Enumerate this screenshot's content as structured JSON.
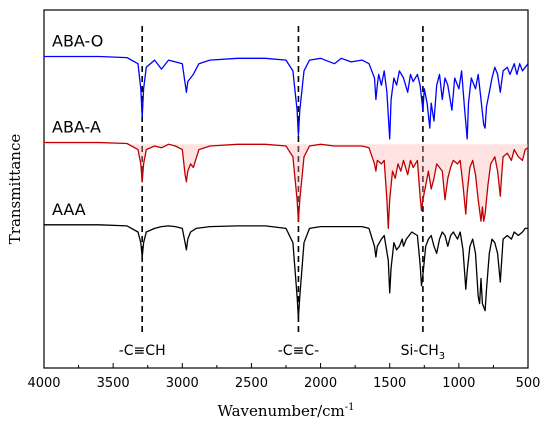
{
  "chart_data": {
    "type": "line",
    "xlabel": "Wavenumber/cm",
    "xlabel_sup": "-1",
    "ylabel": "Transmittance",
    "xlim": [
      4000,
      500
    ],
    "x_reversed": true,
    "xticks": [
      4000,
      3500,
      3000,
      2500,
      2000,
      1500,
      1000,
      500
    ],
    "y_ticks_shown": false,
    "grid": false,
    "series": [
      {
        "name": "ABA-O",
        "color": "#0000ff",
        "baseline": 0.87,
        "points": [
          [
            4000,
            0.0
          ],
          [
            3600,
            0.0
          ],
          [
            3400,
            -0.003
          ],
          [
            3320,
            -0.02
          ],
          [
            3300,
            -0.09
          ],
          [
            3290,
            -0.17
          ],
          [
            3280,
            -0.09
          ],
          [
            3260,
            -0.03
          ],
          [
            3200,
            -0.01
          ],
          [
            3150,
            -0.035
          ],
          [
            3100,
            -0.01
          ],
          [
            3050,
            -0.015
          ],
          [
            3000,
            -0.02
          ],
          [
            2970,
            -0.1
          ],
          [
            2960,
            -0.07
          ],
          [
            2920,
            -0.05
          ],
          [
            2880,
            -0.02
          ],
          [
            2800,
            -0.01
          ],
          [
            2600,
            -0.005
          ],
          [
            2400,
            -0.005
          ],
          [
            2250,
            -0.01
          ],
          [
            2200,
            -0.04
          ],
          [
            2170,
            -0.15
          ],
          [
            2160,
            -0.22
          ],
          [
            2150,
            -0.15
          ],
          [
            2120,
            -0.04
          ],
          [
            2080,
            -0.01
          ],
          [
            2000,
            -0.005
          ],
          [
            1900,
            -0.02
          ],
          [
            1850,
            -0.005
          ],
          [
            1780,
            -0.015
          ],
          [
            1700,
            -0.01
          ],
          [
            1650,
            -0.02
          ],
          [
            1610,
            -0.06
          ],
          [
            1600,
            -0.12
          ],
          [
            1590,
            -0.08
          ],
          [
            1580,
            -0.05
          ],
          [
            1560,
            -0.08
          ],
          [
            1540,
            -0.04
          ],
          [
            1520,
            -0.1
          ],
          [
            1500,
            -0.23
          ],
          [
            1490,
            -0.12
          ],
          [
            1470,
            -0.06
          ],
          [
            1450,
            -0.08
          ],
          [
            1430,
            -0.04
          ],
          [
            1400,
            -0.06
          ],
          [
            1370,
            -0.1
          ],
          [
            1350,
            -0.05
          ],
          [
            1330,
            -0.07
          ],
          [
            1300,
            -0.05
          ],
          [
            1280,
            -0.08
          ],
          [
            1260,
            -0.15
          ],
          [
            1250,
            -0.09
          ],
          [
            1230,
            -0.13
          ],
          [
            1210,
            -0.2
          ],
          [
            1200,
            -0.13
          ],
          [
            1180,
            -0.18
          ],
          [
            1160,
            -0.08
          ],
          [
            1140,
            -0.05
          ],
          [
            1120,
            -0.12
          ],
          [
            1100,
            -0.06
          ],
          [
            1080,
            -0.08
          ],
          [
            1050,
            -0.15
          ],
          [
            1030,
            -0.06
          ],
          [
            1000,
            -0.09
          ],
          [
            980,
            -0.04
          ],
          [
            960,
            -0.14
          ],
          [
            940,
            -0.23
          ],
          [
            930,
            -0.13
          ],
          [
            910,
            -0.06
          ],
          [
            880,
            -0.09
          ],
          [
            860,
            -0.05
          ],
          [
            840,
            -0.12
          ],
          [
            820,
            -0.19
          ],
          [
            810,
            -0.2
          ],
          [
            800,
            -0.14
          ],
          [
            780,
            -0.1
          ],
          [
            760,
            -0.06
          ],
          [
            740,
            -0.03
          ],
          [
            720,
            -0.05
          ],
          [
            700,
            -0.1
          ],
          [
            690,
            -0.07
          ],
          [
            680,
            -0.04
          ],
          [
            650,
            -0.03
          ],
          [
            630,
            -0.05
          ],
          [
            600,
            -0.02
          ],
          [
            580,
            -0.05
          ],
          [
            560,
            -0.02
          ],
          [
            540,
            -0.04
          ],
          [
            520,
            -0.03
          ],
          [
            500,
            -0.02
          ]
        ]
      },
      {
        "name": "ABA-A",
        "color": "#c00000",
        "baseline": 0.63,
        "points": [
          [
            4000,
            0.0
          ],
          [
            3600,
            0.0
          ],
          [
            3400,
            -0.003
          ],
          [
            3320,
            -0.02
          ],
          [
            3300,
            -0.06
          ],
          [
            3290,
            -0.11
          ],
          [
            3280,
            -0.06
          ],
          [
            3260,
            -0.02
          ],
          [
            3200,
            -0.01
          ],
          [
            3150,
            -0.015
          ],
          [
            3100,
            -0.005
          ],
          [
            3050,
            -0.01
          ],
          [
            3000,
            -0.02
          ],
          [
            2980,
            -0.09
          ],
          [
            2970,
            -0.11
          ],
          [
            2960,
            -0.08
          ],
          [
            2940,
            -0.06
          ],
          [
            2920,
            -0.07
          ],
          [
            2880,
            -0.02
          ],
          [
            2800,
            -0.01
          ],
          [
            2600,
            -0.005
          ],
          [
            2400,
            -0.005
          ],
          [
            2250,
            -0.01
          ],
          [
            2200,
            -0.04
          ],
          [
            2170,
            -0.16
          ],
          [
            2160,
            -0.22
          ],
          [
            2150,
            -0.16
          ],
          [
            2120,
            -0.04
          ],
          [
            2080,
            -0.01
          ],
          [
            2000,
            -0.005
          ],
          [
            1900,
            -0.01
          ],
          [
            1800,
            -0.01
          ],
          [
            1700,
            -0.01
          ],
          [
            1650,
            -0.015
          ],
          [
            1610,
            -0.06
          ],
          [
            1600,
            -0.08
          ],
          [
            1590,
            -0.05
          ],
          [
            1560,
            -0.06
          ],
          [
            1540,
            -0.05
          ],
          [
            1520,
            -0.16
          ],
          [
            1510,
            -0.24
          ],
          [
            1500,
            -0.16
          ],
          [
            1480,
            -0.08
          ],
          [
            1460,
            -0.1
          ],
          [
            1440,
            -0.06
          ],
          [
            1420,
            -0.08
          ],
          [
            1400,
            -0.05
          ],
          [
            1370,
            -0.09
          ],
          [
            1350,
            -0.05
          ],
          [
            1330,
            -0.07
          ],
          [
            1300,
            -0.05
          ],
          [
            1280,
            -0.15
          ],
          [
            1270,
            -0.19
          ],
          [
            1260,
            -0.16
          ],
          [
            1240,
            -0.12
          ],
          [
            1220,
            -0.08
          ],
          [
            1200,
            -0.13
          ],
          [
            1180,
            -0.1
          ],
          [
            1160,
            -0.06
          ],
          [
            1120,
            -0.08
          ],
          [
            1100,
            -0.16
          ],
          [
            1080,
            -0.1
          ],
          [
            1060,
            -0.07
          ],
          [
            1040,
            -0.05
          ],
          [
            1010,
            -0.06
          ],
          [
            990,
            -0.05
          ],
          [
            970,
            -0.12
          ],
          [
            950,
            -0.2
          ],
          [
            940,
            -0.14
          ],
          [
            920,
            -0.07
          ],
          [
            900,
            -0.05
          ],
          [
            880,
            -0.09
          ],
          [
            860,
            -0.16
          ],
          [
            840,
            -0.22
          ],
          [
            830,
            -0.18
          ],
          [
            820,
            -0.22
          ],
          [
            810,
            -0.2
          ],
          [
            790,
            -0.12
          ],
          [
            770,
            -0.06
          ],
          [
            740,
            -0.04
          ],
          [
            720,
            -0.08
          ],
          [
            700,
            -0.15
          ],
          [
            690,
            -0.09
          ],
          [
            680,
            -0.04
          ],
          [
            650,
            -0.03
          ],
          [
            620,
            -0.05
          ],
          [
            600,
            -0.02
          ],
          [
            570,
            -0.04
          ],
          [
            540,
            -0.05
          ],
          [
            520,
            -0.02
          ],
          [
            500,
            -0.015
          ]
        ]
      },
      {
        "name": "AAA",
        "color": "#000000",
        "baseline": 0.4,
        "points": [
          [
            4000,
            0.0
          ],
          [
            3600,
            0.0
          ],
          [
            3400,
            -0.003
          ],
          [
            3320,
            -0.02
          ],
          [
            3300,
            -0.05
          ],
          [
            3290,
            -0.09
          ],
          [
            3280,
            -0.05
          ],
          [
            3260,
            -0.02
          ],
          [
            3200,
            -0.01
          ],
          [
            3150,
            -0.005
          ],
          [
            3100,
            -0.003
          ],
          [
            3050,
            -0.005
          ],
          [
            3000,
            -0.01
          ],
          [
            2980,
            -0.05
          ],
          [
            2970,
            -0.07
          ],
          [
            2960,
            -0.04
          ],
          [
            2940,
            -0.02
          ],
          [
            2900,
            -0.01
          ],
          [
            2800,
            -0.005
          ],
          [
            2600,
            -0.003
          ],
          [
            2400,
            -0.003
          ],
          [
            2250,
            -0.01
          ],
          [
            2200,
            -0.05
          ],
          [
            2170,
            -0.2
          ],
          [
            2160,
            -0.26
          ],
          [
            2150,
            -0.2
          ],
          [
            2120,
            -0.05
          ],
          [
            2080,
            -0.01
          ],
          [
            2000,
            -0.005
          ],
          [
            1900,
            -0.005
          ],
          [
            1800,
            -0.005
          ],
          [
            1700,
            -0.005
          ],
          [
            1650,
            -0.01
          ],
          [
            1610,
            -0.06
          ],
          [
            1600,
            -0.09
          ],
          [
            1590,
            -0.06
          ],
          [
            1560,
            -0.04
          ],
          [
            1540,
            -0.03
          ],
          [
            1510,
            -0.1
          ],
          [
            1500,
            -0.19
          ],
          [
            1490,
            -0.12
          ],
          [
            1470,
            -0.05
          ],
          [
            1450,
            -0.07
          ],
          [
            1430,
            -0.06
          ],
          [
            1410,
            -0.04
          ],
          [
            1400,
            -0.06
          ],
          [
            1380,
            -0.04
          ],
          [
            1360,
            -0.03
          ],
          [
            1340,
            -0.02
          ],
          [
            1300,
            -0.03
          ],
          [
            1280,
            -0.11
          ],
          [
            1270,
            -0.17
          ],
          [
            1260,
            -0.14
          ],
          [
            1240,
            -0.06
          ],
          [
            1220,
            -0.04
          ],
          [
            1200,
            -0.03
          ],
          [
            1180,
            -0.06
          ],
          [
            1160,
            -0.08
          ],
          [
            1140,
            -0.04
          ],
          [
            1120,
            -0.02
          ],
          [
            1100,
            -0.03
          ],
          [
            1080,
            -0.06
          ],
          [
            1060,
            -0.03
          ],
          [
            1040,
            -0.02
          ],
          [
            1010,
            -0.04
          ],
          [
            990,
            -0.02
          ],
          [
            970,
            -0.07
          ],
          [
            950,
            -0.18
          ],
          [
            940,
            -0.13
          ],
          [
            920,
            -0.06
          ],
          [
            900,
            -0.04
          ],
          [
            880,
            -0.08
          ],
          [
            860,
            -0.2
          ],
          [
            850,
            -0.22
          ],
          [
            840,
            -0.15
          ],
          [
            830,
            -0.22
          ],
          [
            810,
            -0.24
          ],
          [
            800,
            -0.18
          ],
          [
            780,
            -0.08
          ],
          [
            760,
            -0.04
          ],
          [
            740,
            -0.05
          ],
          [
            720,
            -0.08
          ],
          [
            700,
            -0.16
          ],
          [
            690,
            -0.1
          ],
          [
            680,
            -0.04
          ],
          [
            650,
            -0.03
          ],
          [
            620,
            -0.04
          ],
          [
            600,
            -0.02
          ],
          [
            570,
            -0.03
          ],
          [
            540,
            -0.02
          ],
          [
            520,
            -0.01
          ],
          [
            500,
            -0.01
          ]
        ]
      }
    ],
    "reference_lines": [
      {
        "x": 3290,
        "label": "-C≡CH"
      },
      {
        "x": 2160,
        "label": "-C≡C-"
      },
      {
        "x": 1260,
        "label": "Si-CH",
        "label_sub": "3"
      }
    ]
  }
}
